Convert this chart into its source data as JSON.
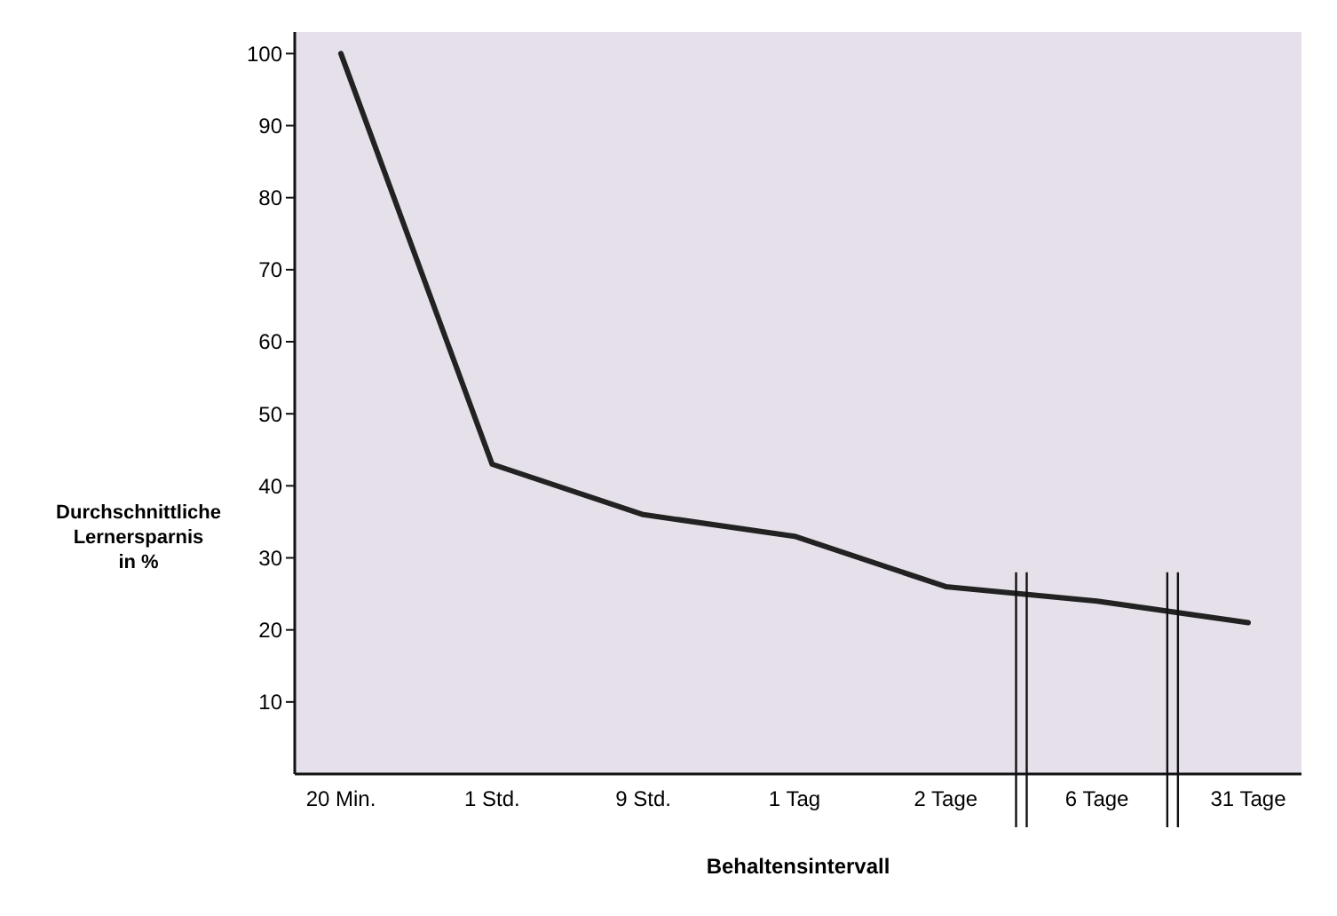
{
  "chart_data": {
    "type": "line",
    "xlabel": "Behaltensintervall",
    "ylabel": "Durchschnittliche Lernersparnis in %",
    "categories": [
      "20 Min.",
      "1 Std.",
      "9 Std.",
      "1 Tag",
      "2 Tage",
      "6 Tage",
      "31 Tage"
    ],
    "series": [
      {
        "color": "#222222",
        "values": [
          100,
          43,
          36,
          33,
          26,
          24,
          21
        ]
      }
    ],
    "ylim": [
      0,
      103
    ],
    "yticks": [
      10,
      20,
      30,
      40,
      50,
      60,
      70,
      80,
      90,
      100
    ],
    "grid": false,
    "marker": "none",
    "line_style": "solid"
  }
}
